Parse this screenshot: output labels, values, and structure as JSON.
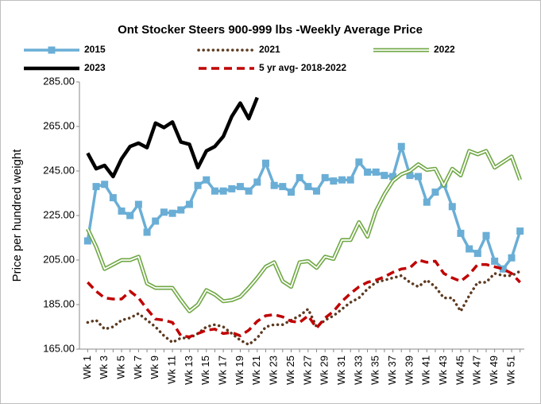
{
  "chart_data": {
    "type": "line",
    "title": "Ont Stocker Steers 900-999 lbs -Weekly Average Price",
    "y_label": "Price per hundred weight",
    "legend": "top",
    "grid": false,
    "categories": [
      "Wk 1",
      null,
      "Wk 3",
      null,
      "Wk 5",
      null,
      "Wk 7",
      null,
      "Wk 9",
      null,
      "Wk 11",
      null,
      "Wk 13",
      null,
      "Wk 15",
      null,
      "Wk 17",
      null,
      "Wk 19",
      null,
      "Wk 21",
      null,
      "Wk 23",
      null,
      "Wk 25",
      null,
      "Wk 27",
      null,
      "Wk 29",
      null,
      "Wk 31",
      null,
      "Wk 33",
      null,
      "Wk 35",
      null,
      "Wk 37",
      null,
      "Wk 39",
      null,
      "Wk 41",
      null,
      "Wk 43",
      null,
      "Wk 45",
      null,
      "Wk 47",
      null,
      "Wk 49",
      null,
      "Wk 51",
      null
    ],
    "ylim": [
      165,
      285
    ],
    "yticks": [
      {
        "value": 165,
        "label": "165.00"
      },
      {
        "value": 185,
        "label": "185.00"
      },
      {
        "value": 205,
        "label": "205.00"
      },
      {
        "value": 225,
        "label": "225.00"
      },
      {
        "value": 245,
        "label": "245.00"
      },
      {
        "value": 265,
        "label": "265.00"
      },
      {
        "value": 285,
        "label": "285.00"
      }
    ],
    "series": [
      {
        "name": "2015",
        "color": "#6aaed6",
        "line_style": "solid",
        "marker": "square",
        "values": [
          213.6,
          238,
          239,
          233,
          227,
          225,
          230,
          217.5,
          222.5,
          226.5,
          226,
          227.5,
          230,
          238.5,
          241,
          236,
          236,
          237,
          238,
          236,
          240,
          248.5,
          238.5,
          238,
          235.5,
          242,
          238,
          236,
          242,
          240.5,
          241,
          241,
          249,
          244.5,
          244.5,
          243,
          242.5,
          256,
          243,
          242.5,
          231,
          235.5,
          239,
          229,
          217,
          210,
          208,
          216,
          204.5,
          201,
          206,
          218
        ]
      },
      {
        "name": "2021",
        "color": "#5c3a21",
        "line_style": "dotted",
        "values": [
          177,
          178,
          174,
          175,
          178,
          179,
          181,
          178,
          175,
          171,
          168,
          170,
          170,
          172,
          175,
          176,
          175,
          172,
          169,
          167,
          170,
          175,
          176,
          176,
          178,
          180,
          183,
          175,
          178,
          180,
          183,
          186,
          188,
          192,
          195,
          196,
          197,
          198,
          195,
          193,
          196,
          193,
          188,
          188,
          182,
          189,
          195,
          195,
          199,
          198,
          198,
          200
        ]
      },
      {
        "name": "2022",
        "color": "#70a845",
        "line_style": "double",
        "values": [
          219,
          211,
          201,
          203,
          205,
          205,
          206.5,
          194.5,
          192.5,
          192.5,
          192.5,
          187,
          182,
          185,
          191.5,
          189.5,
          186.5,
          187,
          188.5,
          192.5,
          197,
          202,
          204,
          195.5,
          193,
          204,
          204.5,
          201.5,
          206.5,
          205.5,
          214,
          214,
          222,
          215.5,
          227,
          234.5,
          240.5,
          243.5,
          245,
          248,
          245.5,
          246,
          238.5,
          246,
          243,
          254,
          252.5,
          254,
          246.5,
          249,
          251.5,
          241
        ]
      },
      {
        "name": "2023",
        "color": "#000000",
        "line_style": "thick",
        "values": [
          253,
          246,
          247.5,
          242.5,
          250.5,
          256,
          257.5,
          255.5,
          266.5,
          264.5,
          267,
          258,
          257,
          246.5,
          254,
          256,
          260.5,
          269.5,
          275.5,
          268.5,
          278,
          null,
          null,
          null,
          null,
          null,
          null,
          null,
          null,
          null,
          null,
          null,
          null,
          null,
          null,
          null,
          null,
          null,
          null,
          null,
          null,
          null,
          null,
          null,
          null,
          null,
          null,
          null,
          null,
          null,
          null,
          null
        ]
      },
      {
        "name": "5 yr avg- 2018-2022",
        "color": "#c00000",
        "line_style": "dashed",
        "values": [
          195,
          191,
          188,
          187.5,
          187.5,
          191,
          188,
          183,
          178.5,
          178,
          177,
          171,
          170.5,
          172,
          173.5,
          174,
          172,
          172.5,
          171,
          173.5,
          177.5,
          180,
          180.5,
          179.5,
          177.5,
          177,
          180,
          174.5,
          179,
          182,
          186.5,
          190,
          193,
          195,
          196,
          197.5,
          199.5,
          201,
          201.5,
          205,
          204,
          204.5,
          199,
          197,
          195.5,
          198.5,
          203,
          203,
          202,
          201,
          199,
          195
        ]
      }
    ]
  }
}
